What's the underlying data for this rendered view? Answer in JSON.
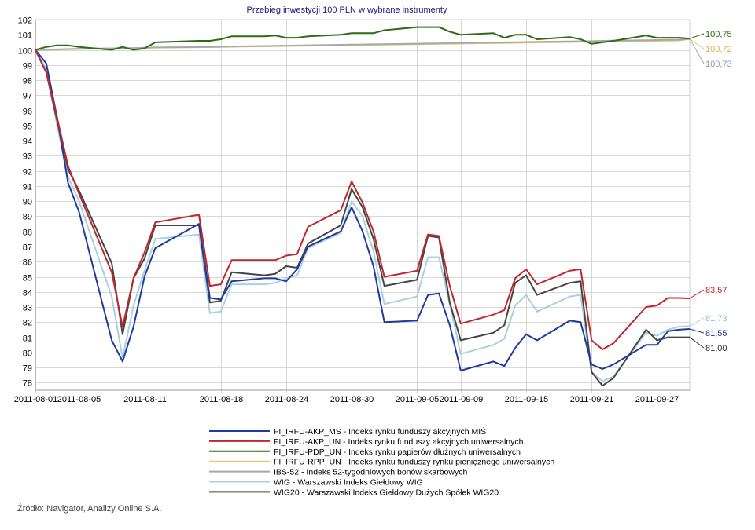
{
  "chart_data": {
    "type": "line",
    "title": "Przebieg inwestycji 100 PLN w wybrane instrumenty",
    "ylim": [
      77.5,
      102
    ],
    "y_ticks": [
      78,
      79,
      80,
      81,
      82,
      83,
      84,
      85,
      86,
      87,
      88,
      89,
      90,
      91,
      92,
      93,
      94,
      95,
      96,
      97,
      98,
      99,
      100,
      101,
      102
    ],
    "x_start": "2011-08-01",
    "x_end": "2011-09-30",
    "x_ticks": [
      "2011-08-01",
      "2011-08-05",
      "2011-08-11",
      "2011-08-18",
      "2011-08-24",
      "2011-08-30",
      "2011-09-05",
      "2011-09-09",
      "2011-09-15",
      "2011-09-21",
      "2011-09-27"
    ],
    "grid": true,
    "legend_placement": "bottom",
    "dates": [
      "2011-08-01",
      "2011-08-02",
      "2011-08-03",
      "2011-08-04",
      "2011-08-05",
      "2011-08-08",
      "2011-08-09",
      "2011-08-10",
      "2011-08-11",
      "2011-08-12",
      "2011-08-16",
      "2011-08-17",
      "2011-08-18",
      "2011-08-19",
      "2011-08-22",
      "2011-08-23",
      "2011-08-24",
      "2011-08-25",
      "2011-08-26",
      "2011-08-29",
      "2011-08-30",
      "2011-08-31",
      "2011-09-01",
      "2011-09-02",
      "2011-09-05",
      "2011-09-06",
      "2011-09-07",
      "2011-09-08",
      "2011-09-09",
      "2011-09-12",
      "2011-09-13",
      "2011-09-14",
      "2011-09-15",
      "2011-09-16",
      "2011-09-19",
      "2011-09-20",
      "2011-09-21",
      "2011-09-22",
      "2011-09-23",
      "2011-09-26",
      "2011-09-27",
      "2011-09-28",
      "2011-09-29",
      "2011-09-30"
    ],
    "series": [
      {
        "name": "FI_IRFU-AKP_MS - Indeks rynku funduszy akcyjnych MIŚ",
        "color": "#1f3a9f",
        "values": [
          100,
          99.1,
          95.5,
          91.2,
          89.3,
          80.8,
          79.4,
          81.7,
          85.0,
          86.9,
          88.5,
          83.6,
          83.5,
          84.7,
          84.9,
          84.9,
          84.7,
          85.5,
          87.0,
          88.0,
          89.6,
          88.0,
          85.7,
          82.0,
          82.1,
          83.8,
          83.9,
          81.8,
          78.8,
          79.4,
          79.1,
          80.3,
          81.2,
          80.8,
          82.1,
          82.0,
          79.2,
          78.9,
          79.2,
          80.5,
          80.5,
          81.4,
          81.5,
          81.55
        ],
        "end_label": "81,55"
      },
      {
        "name": "FI_IRFU-AKP_UN - Indeks rynku funduszy akcyjnych uniwersalnych",
        "color": "#c0272d",
        "values": [
          100,
          98.5,
          95.5,
          92.3,
          90.5,
          85.3,
          81.7,
          84.9,
          86.6,
          88.6,
          89.1,
          84.4,
          84.5,
          86.1,
          86.1,
          86.1,
          86.4,
          86.5,
          88.3,
          89.4,
          91.3,
          89.9,
          88.0,
          85.0,
          85.4,
          87.8,
          87.7,
          84.4,
          81.9,
          82.5,
          82.8,
          84.9,
          85.5,
          84.5,
          85.4,
          85.5,
          80.8,
          80.2,
          80.6,
          83.0,
          83.1,
          83.6,
          83.6,
          83.57
        ],
        "end_label": "83,57"
      },
      {
        "name": "FI_IRFU-PDP_UN - Indeks rynku papierów dłużnych uniwersalnych",
        "color": "#2e6b14",
        "values": [
          100,
          100.2,
          100.3,
          100.3,
          100.2,
          100.0,
          100.2,
          100.0,
          100.1,
          100.5,
          100.6,
          100.6,
          100.7,
          100.9,
          100.9,
          100.95,
          100.8,
          100.8,
          100.9,
          101.0,
          101.1,
          101.1,
          101.1,
          101.3,
          101.5,
          101.5,
          101.5,
          101.2,
          101.0,
          101.1,
          100.8,
          101.0,
          101.0,
          100.7,
          100.85,
          100.7,
          100.4,
          100.5,
          100.6,
          100.95,
          100.8,
          100.8,
          100.8,
          100.75
        ],
        "end_label": "100,75"
      },
      {
        "name": "FI_IRFU-RPP_UN - Indeks rynku funduszy rynku pieniężnego uniwersalnych",
        "color": "#e2c87a",
        "values": [
          100,
          100.02,
          100.04,
          100.06,
          100.08,
          100.1,
          100.11,
          100.12,
          100.13,
          100.15,
          100.18,
          100.19,
          100.2,
          100.21,
          100.24,
          100.25,
          100.26,
          100.27,
          100.28,
          100.31,
          100.32,
          100.33,
          100.34,
          100.35,
          100.38,
          100.39,
          100.4,
          100.41,
          100.42,
          100.45,
          100.46,
          100.47,
          100.48,
          100.49,
          100.52,
          100.53,
          100.54,
          100.55,
          100.56,
          100.59,
          100.6,
          100.61,
          100.62,
          100.72
        ],
        "end_label": "100,72"
      },
      {
        "name": "IBS-52 - Indeks 52-tygodniowych bonów skarbowych",
        "color": "#a8a8a8",
        "values": [
          100,
          100.01,
          100.03,
          100.05,
          100.07,
          100.1,
          100.11,
          100.12,
          100.14,
          100.16,
          100.19,
          100.2,
          100.21,
          100.23,
          100.26,
          100.27,
          100.28,
          100.29,
          100.31,
          100.34,
          100.35,
          100.36,
          100.37,
          100.38,
          100.41,
          100.42,
          100.43,
          100.45,
          100.46,
          100.49,
          100.5,
          100.51,
          100.52,
          100.53,
          100.56,
          100.57,
          100.58,
          100.6,
          100.61,
          100.64,
          100.65,
          100.66,
          100.67,
          100.73
        ],
        "end_label": "100,73"
      },
      {
        "name": "WIG - Warszawski Indeks Giełdowy WIG",
        "color": "#a9d0de",
        "values": [
          100,
          98.7,
          95.0,
          91.6,
          90.0,
          83.7,
          79.6,
          83.1,
          85.4,
          87.5,
          87.8,
          82.6,
          82.7,
          84.5,
          84.5,
          84.6,
          84.9,
          85.1,
          86.9,
          87.9,
          90.0,
          89.0,
          86.7,
          83.2,
          83.7,
          86.3,
          86.3,
          83.2,
          79.9,
          80.5,
          80.9,
          83.1,
          83.8,
          82.7,
          83.7,
          83.8,
          78.7,
          78.1,
          78.4,
          81.3,
          81.1,
          81.5,
          81.7,
          81.73
        ],
        "end_label": "81,73"
      },
      {
        "name": "WIG20 - Warszawski Indeks Giełdowy Dużych Spółek WIG20",
        "color": "#444444",
        "values": [
          100,
          98.5,
          95.3,
          92.1,
          90.7,
          85.9,
          81.2,
          84.9,
          86.2,
          88.4,
          88.4,
          83.3,
          83.4,
          85.3,
          85.1,
          85.2,
          85.7,
          85.6,
          87.2,
          88.4,
          90.8,
          89.6,
          87.5,
          84.4,
          84.8,
          87.7,
          87.6,
          83.3,
          80.8,
          81.3,
          81.8,
          84.6,
          85.1,
          83.8,
          84.6,
          84.7,
          78.7,
          77.8,
          78.3,
          81.5,
          80.8,
          81.0,
          81.0,
          81.0
        ],
        "end_label": "81,00"
      }
    ]
  },
  "source_text": "Źródło: Navigator, Analizy Online S.A."
}
